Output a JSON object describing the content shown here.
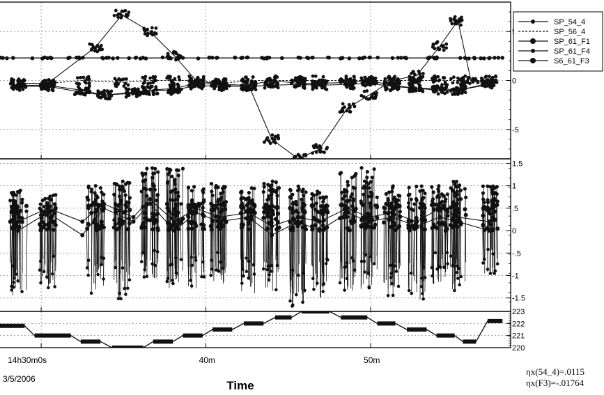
{
  "colors": {
    "line": "#111111",
    "grid": "#8a8a8a",
    "frame": "#000000",
    "background": "#ffffff"
  },
  "legend": {
    "entries": [
      {
        "label": "SP_54_4",
        "marker": "dot"
      },
      {
        "label": "SP_56_4",
        "marker": "none"
      },
      {
        "label": "SP_61_F1",
        "marker": "big-dot"
      },
      {
        "label": "SP_61_F4",
        "marker": "dot"
      },
      {
        "label": "S6_61_F3",
        "marker": "big-dot"
      }
    ]
  },
  "xaxis": {
    "title": "Time",
    "date": "3/5/2006",
    "ticks": [
      {
        "t": 30,
        "label": "14h30m0s"
      },
      {
        "t": 40,
        "label": "40m"
      },
      {
        "t": 50,
        "label": "50m"
      }
    ],
    "range_minutes": [
      27.5,
      58.5
    ]
  },
  "annotations": [
    "ηx(54_4)=.0115",
    "ηx(F3)=-.01764"
  ],
  "chart_data": [
    {
      "type": "line",
      "panel": "top",
      "ylim": [
        -8,
        8
      ],
      "yticks": [
        "5",
        "0",
        "-5"
      ],
      "series": [
        {
          "name": "SP_54_4",
          "x": [
            28.6,
            30.4,
            33.3,
            34.9,
            36.6,
            38.1,
            39.4,
            40.8,
            42.6,
            44.0,
            45.6,
            46.9,
            48.6,
            49.9,
            51.3,
            52.8,
            54.2,
            55.3,
            56.1,
            57.2
          ],
          "y": [
            -0.3,
            -0.3,
            3.4,
            6.7,
            5.0,
            2.5,
            0.0,
            -0.4,
            -0.5,
            -6.0,
            -8.0,
            -7.0,
            -2.8,
            -1.5,
            0.0,
            0.5,
            3.5,
            6.1,
            -0.1,
            -0.1
          ]
        },
        {
          "name": "SP_56_4",
          "x": [
            28.6,
            30.4,
            32.5,
            34.9,
            36.6,
            38.1,
            39.4,
            41.0,
            42.6,
            44.0,
            45.6,
            46.9,
            48.6,
            49.9,
            51.3,
            52.8,
            54.2,
            55.3,
            57.2
          ],
          "y": [
            -0.3,
            -0.3,
            0.0,
            -0.2,
            0.0,
            0.0,
            0.0,
            -0.3,
            0.0,
            0.0,
            0.0,
            0.0,
            0.0,
            0.0,
            0.0,
            0.0,
            0.0,
            0.0,
            0.0
          ]
        },
        {
          "name": "SP_61_F1",
          "x": [
            28.0,
            30.0,
            32.0,
            34.0,
            36.0,
            38.0,
            40.0,
            42.0,
            44.0,
            46.0,
            48.0,
            50.0,
            52.0,
            54.0,
            56.0,
            57.5
          ],
          "y": [
            2.3,
            2.3,
            2.3,
            2.3,
            2.3,
            2.3,
            2.3,
            2.3,
            2.3,
            2.3,
            2.3,
            2.3,
            2.3,
            2.3,
            2.3,
            2.3
          ]
        },
        {
          "name": "SP_61_F4",
          "x": [
            28.6,
            30.4,
            32.5,
            33.8,
            35.6,
            36.6,
            38.1,
            39.4,
            40.8,
            42.6,
            44.0,
            45.6,
            46.9,
            48.6,
            49.9,
            51.3,
            52.8,
            54.2,
            55.3,
            57.2
          ],
          "y": [
            -0.5,
            -0.5,
            -1.0,
            -1.5,
            -1.2,
            -1.0,
            -0.8,
            -0.3,
            -0.4,
            -0.5,
            0.0,
            -0.3,
            -0.3,
            -0.2,
            0.0,
            -0.5,
            -0.8,
            -0.8,
            -1.0,
            -0.3
          ]
        },
        {
          "name": "S6_61_F3",
          "x": [
            28.6,
            30.4,
            32.5,
            33.8,
            35.6,
            36.6,
            38.1,
            39.4,
            40.8,
            42.6,
            44.0,
            45.6,
            46.9,
            48.6,
            49.9,
            51.3,
            52.8,
            54.2,
            55.3,
            57.2
          ],
          "y": [
            -0.6,
            -0.6,
            -1.2,
            -1.5,
            -1.3,
            -1.0,
            -1.0,
            -0.5,
            -0.6,
            -0.6,
            -0.5,
            -0.4,
            -0.5,
            -0.4,
            -0.3,
            -0.6,
            -0.8,
            -1.0,
            -1.0,
            -0.4
          ]
        }
      ]
    },
    {
      "type": "line",
      "panel": "middle",
      "ylim": [
        -1.8,
        1.6
      ],
      "yticks": [
        "1.5",
        "1",
        ".5",
        "0",
        "-.5",
        "-1",
        "-1.5"
      ],
      "series": [
        {
          "name": "SP_54_4",
          "x": [
            28.6,
            30.4,
            32.5,
            33.8,
            35.6,
            36.6,
            38.1,
            39.4,
            40.8,
            42.6,
            44.0,
            45.6,
            46.9,
            48.6,
            49.9,
            51.3,
            52.8,
            54.2,
            55.3,
            57.2
          ],
          "y": [
            0.2,
            0.5,
            0.2,
            0.6,
            0.3,
            0.7,
            0.2,
            0.5,
            0.3,
            0.4,
            0.1,
            0.3,
            0.2,
            0.5,
            0.3,
            0.4,
            0.2,
            0.5,
            0.3,
            0.2
          ]
        },
        {
          "name": "S6_61_F3",
          "x": [
            28.6,
            30.4,
            32.5,
            33.8,
            35.6,
            36.6,
            38.1,
            39.4,
            40.8,
            42.6,
            44.0,
            45.6,
            46.9,
            48.6,
            49.9,
            51.3,
            52.8,
            54.2,
            55.3,
            57.2
          ],
          "y": [
            0.0,
            0.4,
            -0.1,
            0.5,
            0.2,
            0.6,
            0.0,
            0.4,
            0.2,
            0.3,
            -0.1,
            0.2,
            0.0,
            0.4,
            0.2,
            0.3,
            0.1,
            0.3,
            0.2,
            0.0
          ]
        }
      ],
      "clusters": {
        "centers": [
          28.6,
          30.4,
          33.3,
          34.9,
          36.6,
          38.1,
          39.4,
          40.8,
          42.6,
          44.0,
          45.6,
          46.9,
          48.6,
          49.9,
          51.3,
          52.8,
          54.2,
          55.3,
          57.2
        ],
        "ymin": [
          -1.5,
          -1.3,
          -1.4,
          -1.6,
          -1.1,
          -1.3,
          -1.3,
          -1.2,
          -1.4,
          -1.4,
          -1.7,
          -1.5,
          -1.4,
          -1.3,
          -1.5,
          -1.6,
          -1.2,
          -1.4,
          -1.0
        ],
        "ymax": [
          0.9,
          0.8,
          1.0,
          1.1,
          1.4,
          1.4,
          1.0,
          1.1,
          1.0,
          1.1,
          1.0,
          0.9,
          1.3,
          1.4,
          1.0,
          1.0,
          1.0,
          1.1,
          1.0
        ]
      }
    },
    {
      "type": "line",
      "panel": "bottom",
      "ylim": [
        220,
        223
      ],
      "yticks": [
        "223",
        "222",
        "221",
        "220"
      ],
      "series": [
        {
          "name": "step",
          "x": [
            27.5,
            29.0,
            29.6,
            31.8,
            32.4,
            33.6,
            34.3,
            36.2,
            36.8,
            38.0,
            38.6,
            39.8,
            40.4,
            41.6,
            42.3,
            43.5,
            44.2,
            45.2,
            45.8,
            47.5,
            48.2,
            49.8,
            50.4,
            51.5,
            52.2,
            53.4,
            54.0,
            55.1,
            55.6,
            56.4,
            57.1,
            58.0
          ],
          "y": [
            221.8,
            221.8,
            221.0,
            221.0,
            220.5,
            220.5,
            220.0,
            220.0,
            220.5,
            220.5,
            221.0,
            221.0,
            221.5,
            221.5,
            222.0,
            222.0,
            222.5,
            222.5,
            223.0,
            223.0,
            222.5,
            222.5,
            222.0,
            222.0,
            221.5,
            221.5,
            221.0,
            221.0,
            220.5,
            220.5,
            222.2,
            222.2
          ]
        }
      ]
    }
  ]
}
